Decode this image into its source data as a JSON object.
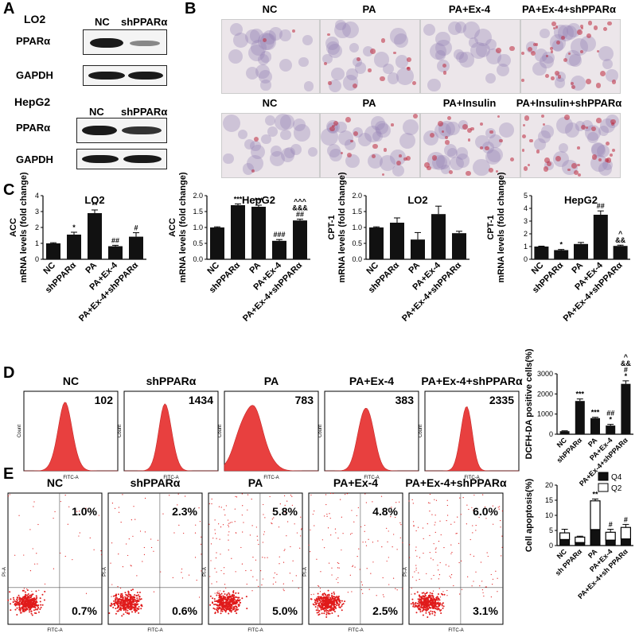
{
  "panels": [
    "A",
    "B",
    "C",
    "D",
    "E"
  ],
  "western": [
    {
      "cell": "LO2",
      "cols": [
        "NC",
        "shPPARα"
      ],
      "rows": [
        "PPARα",
        "GAPDH"
      ]
    },
    {
      "cell": "HepG2",
      "cols": [
        "NC",
        "shPPARα"
      ],
      "rows": [
        "PPARα",
        "GAPDH"
      ]
    }
  ],
  "oilred": {
    "row1": [
      "NC",
      "PA",
      "PA+Ex-4",
      "PA+Ex-4+shPPARα"
    ],
    "row2": [
      "NC",
      "PA",
      "PA+Insulin",
      "PA+Insulin+shPPARα"
    ]
  },
  "colors": {
    "bar": "#111111",
    "flow": "#e8403f",
    "scatter": "#e01b1b",
    "q2": "#ffffff",
    "q4": "#111111"
  },
  "chart_data": [
    {
      "type": "bar",
      "title": "LO2",
      "ylabel": "ACC\nmRNA levels (fold change)",
      "categories": [
        "NC",
        "shPPARα",
        "PA",
        "PA+Ex-4",
        "PA+Ex-4+shPPARα"
      ],
      "values": [
        1.0,
        1.55,
        2.9,
        0.82,
        1.42
      ],
      "errors": [
        0.04,
        0.15,
        0.2,
        0.06,
        0.25
      ],
      "ylim": [
        0,
        4
      ],
      "yticks": [
        "0",
        "1",
        "2",
        "3",
        "4"
      ],
      "annotations": [
        "",
        "*",
        "**",
        "##",
        "#"
      ]
    },
    {
      "type": "bar",
      "title": "HepG2",
      "ylabel": "ACC\nmRNA levels (fold change)",
      "categories": [
        "NC",
        "shPPARα",
        "PA",
        "PA+Ex-4",
        "PA+Ex-4+shPPARα"
      ],
      "values": [
        1.0,
        1.7,
        1.65,
        0.58,
        1.22
      ],
      "errors": [
        0.02,
        0.04,
        0.05,
        0.04,
        0.04
      ],
      "ylim": [
        0,
        2.0
      ],
      "yticks": [
        "0.0",
        "0.5",
        "1.0",
        "1.5",
        "2.0"
      ],
      "annotations": [
        "",
        "***",
        "***",
        "###",
        "^^^\n&&&\n##"
      ]
    },
    {
      "type": "bar",
      "title": "LO2",
      "ylabel": "CPT-1\nmRNA levels (fold change)",
      "categories": [
        "NC",
        "shPPARα",
        "PA",
        "PA+Ex-4",
        "PA+Ex-4+shPPARα"
      ],
      "values": [
        1.0,
        1.15,
        0.62,
        1.42,
        0.82
      ],
      "errors": [
        0.02,
        0.15,
        0.22,
        0.25,
        0.06
      ],
      "ylim": [
        0,
        2.0
      ],
      "yticks": [
        "0.0",
        "0.5",
        "1.0",
        "1.5",
        "2.0"
      ],
      "annotations": [
        "",
        "",
        "",
        "",
        ""
      ]
    },
    {
      "type": "bar",
      "title": "HepG2",
      "ylabel": "CPT-1\nmRNA levels (fold change)",
      "categories": [
        "NC",
        "shPPARα",
        "PA",
        "PA+Ex-4",
        "PA+Ex-4+shPPARα"
      ],
      "values": [
        1.0,
        0.72,
        1.2,
        3.5,
        1.05
      ],
      "errors": [
        0.03,
        0.05,
        0.12,
        0.3,
        0.06
      ],
      "ylim": [
        0,
        5
      ],
      "yticks": [
        "0",
        "1",
        "2",
        "3",
        "4",
        "5"
      ],
      "annotations": [
        "",
        "*",
        "",
        "##",
        "^\n&&"
      ]
    },
    {
      "type": "bar",
      "title": "",
      "ylabel": "DCFH-DA positive cells(%)",
      "categories": [
        "NC",
        "shPPARα",
        "PA",
        "PA+Ex-4",
        "PA+Ex-4+shPPARα"
      ],
      "values": [
        150,
        1650,
        800,
        430,
        2500
      ],
      "errors": [
        20,
        100,
        40,
        60,
        150
      ],
      "ylim": [
        0,
        3000
      ],
      "yticks": [
        "0",
        "1000",
        "2000",
        "3000"
      ],
      "annotations": [
        "",
        "***",
        "***",
        "##\n*",
        "^\n&&\n#\n*"
      ]
    },
    {
      "type": "bar",
      "title": "",
      "ylabel": "Cell apoptosis(%)",
      "categories": [
        "NC",
        "sh PPARα",
        "PA",
        "PA+Ex-4",
        "PA+Ex-4+sh PPARα"
      ],
      "series": [
        {
          "name": "Q4",
          "values": [
            2.0,
            1.0,
            5.3,
            1.8,
            2.2
          ]
        },
        {
          "name": "Q2",
          "values": [
            2.2,
            1.8,
            9.5,
            2.6,
            3.8
          ]
        }
      ],
      "errors": [
        1.2,
        0.3,
        0.6,
        1.0,
        1.0
      ],
      "ylim": [
        0,
        20
      ],
      "yticks": [
        "0",
        "5",
        "10",
        "15",
        "20"
      ],
      "annotations": [
        "",
        "",
        "**",
        "#",
        "#"
      ]
    }
  ],
  "flow": [
    {
      "title": "NC",
      "value": "102",
      "xlabel": "FITC-A",
      "ylabel": "Count"
    },
    {
      "title": "shPPARα",
      "value": "1434",
      "xlabel": "FITC-A",
      "ylabel": "Count"
    },
    {
      "title": "PA",
      "value": "783",
      "xlabel": "FITC-A",
      "ylabel": "Count"
    },
    {
      "title": "PA+Ex-4",
      "value": "383",
      "xlabel": "FITC-A",
      "ylabel": "Count"
    },
    {
      "title": "PA+Ex-4+shPPARα",
      "value": "2335",
      "xlabel": "FITC-A",
      "ylabel": "Count"
    }
  ],
  "scatter": [
    {
      "title": "NC",
      "q2": "1.0%",
      "q4": "0.7%",
      "xlabel": "FITC-A",
      "ylabel": "PI-A"
    },
    {
      "title": "shPPARα",
      "q2": "2.3%",
      "q4": "0.6%",
      "xlabel": "FITC-A",
      "ylabel": "PI-A"
    },
    {
      "title": "PA",
      "q2": "5.8%",
      "q4": "5.0%",
      "xlabel": "FITC-A",
      "ylabel": "PI-A"
    },
    {
      "title": "PA+Ex-4",
      "q2": "4.8%",
      "q4": "2.5%",
      "xlabel": "FITC-A",
      "ylabel": "PI-A"
    },
    {
      "title": "PA+Ex-4+shPPARα",
      "q2": "6.0%",
      "q4": "3.1%",
      "xlabel": "FITC-A",
      "ylabel": "PI-A"
    }
  ]
}
